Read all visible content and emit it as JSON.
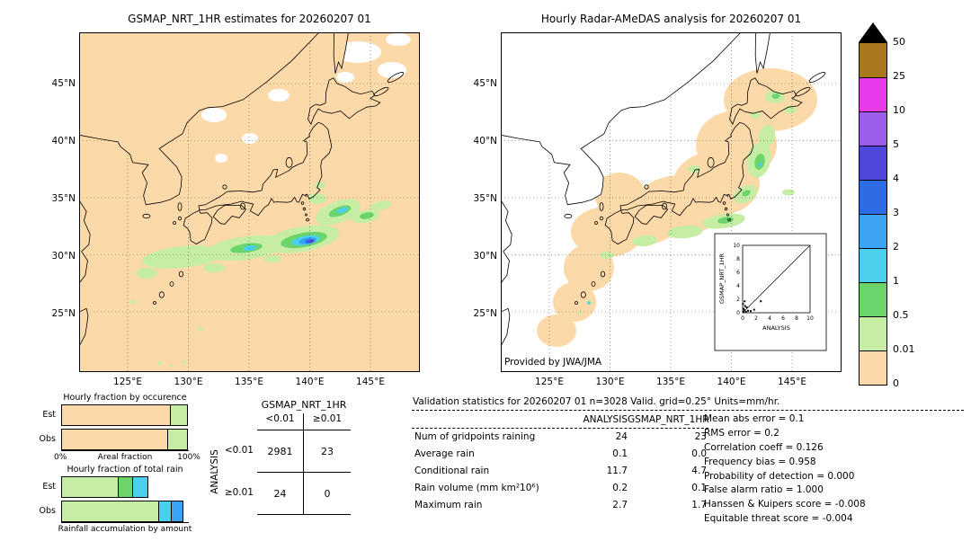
{
  "palette": {
    "p0": "#fcd9a9",
    "p001": "#c5eda3",
    "p05": "#6bd46b",
    "p1": "#4ad0ec",
    "p2": "#3ba4f2",
    "p3": "#2d6ce4",
    "p4": "#4f46dc",
    "p5": "#9c5ee8",
    "p10": "#e93ae9",
    "p25": "#a8791d",
    "overflow": "#000000",
    "nodata": "#ffffff"
  },
  "left_map": {
    "title": "GSMAP_NRT_1HR estimates for 20260207 01",
    "lat_ticks": [
      "45°N",
      "40°N",
      "35°N",
      "30°N",
      "25°N"
    ],
    "lon_ticks": [
      "125°E",
      "130°E",
      "135°E",
      "140°E",
      "145°E"
    ]
  },
  "right_map": {
    "title": "Hourly Radar-AMeDAS analysis for 20260207 01",
    "credit": "Provided by JWA/JMA",
    "lat_ticks": [
      "45°N",
      "40°N",
      "35°N",
      "30°N",
      "25°N"
    ],
    "lon_ticks": [
      "125°E",
      "130°E",
      "135°E",
      "140°E",
      "145°E"
    ],
    "inset": {
      "xlabel": "ANALYSIS",
      "ylabel": "GSMAP_NRT_1HR",
      "ticks": [
        "0",
        "2",
        "4",
        "6",
        "8",
        "10"
      ],
      "points": [
        [
          0.1,
          0.1
        ],
        [
          0.25,
          0.35
        ],
        [
          0.5,
          0.15
        ],
        [
          0.15,
          0.6
        ],
        [
          0.8,
          0.3
        ],
        [
          0.35,
          1.0
        ],
        [
          0.3,
          1.7
        ],
        [
          1.2,
          0.25
        ],
        [
          1.7,
          0.45
        ],
        [
          2.7,
          1.7
        ],
        [
          0.6,
          0.8
        ],
        [
          0.05,
          1.3
        ]
      ]
    }
  },
  "colorbar": {
    "units": "mm/hr",
    "labels": [
      "50",
      "25",
      "10",
      "5",
      "4",
      "3",
      "2",
      "1",
      "0.5",
      "0.01",
      "0"
    ],
    "colors": [
      "#a8791d",
      "#e93ae9",
      "#9c5ee8",
      "#4f46dc",
      "#2d6ce4",
      "#3ba4f2",
      "#4ad0ec",
      "#6bd46b",
      "#c5eda3",
      "#fcd9a9"
    ],
    "overflow_color": "#000000"
  },
  "occurrence_chart": {
    "title": "Hourly fraction by occurence",
    "xlabel": "Areal fraction",
    "x_min": "0%",
    "x_max": "100%",
    "rows": [
      {
        "label": "Est",
        "segments": [
          {
            "color": "p0",
            "pct": 86
          },
          {
            "color": "p001",
            "pct": 14
          }
        ]
      },
      {
        "label": "Obs",
        "segments": [
          {
            "color": "p0",
            "pct": 84
          },
          {
            "color": "p001",
            "pct": 16
          }
        ]
      }
    ]
  },
  "volume_chart": {
    "title": "Hourly fraction of total rain",
    "xlabel": "Rainfall accumulation by amount",
    "rows": [
      {
        "label": "Est",
        "segments": [
          {
            "color": "p001",
            "pct": 45
          },
          {
            "color": "p05",
            "pct": 12
          },
          {
            "color": "p1",
            "pct": 13
          }
        ]
      },
      {
        "label": "Obs",
        "segments": [
          {
            "color": "p001",
            "pct": 77
          },
          {
            "color": "p1",
            "pct": 10
          },
          {
            "color": "p2",
            "pct": 10
          }
        ]
      }
    ]
  },
  "contingency": {
    "title": "GSMAP_NRT_1HR",
    "row_axis_label": "ANALYSIS",
    "col_labels": [
      "<0.01",
      "≥0.01"
    ],
    "row_labels": [
      "<0.01",
      "≥0.01"
    ],
    "values": [
      [
        "2981",
        "23"
      ],
      [
        "24",
        "0"
      ]
    ]
  },
  "stats": {
    "header": "Validation statistics for 20260207 01  n=3028 Valid. grid=0.25° Units=mm/hr.",
    "col_analysis": "ANALYSIS",
    "col_gsmap": "GSMAP_NRT_1HR",
    "rows": [
      {
        "label": "Num of gridpoints raining",
        "analysis": "24",
        "gsmap": "23"
      },
      {
        "label": "Average rain",
        "analysis": "0.1",
        "gsmap": "0.0"
      },
      {
        "label": "Conditional rain",
        "analysis": "11.7",
        "gsmap": "4.7"
      },
      {
        "label": "Rain volume (mm km²10⁶)",
        "analysis": "0.2",
        "gsmap": "0.1"
      },
      {
        "label": "Maximum rain",
        "analysis": "2.7",
        "gsmap": "1.7"
      }
    ],
    "scores": [
      {
        "label": "Mean abs error",
        "value": "0.1"
      },
      {
        "label": "RMS error",
        "value": "0.2"
      },
      {
        "label": "Correlation coeff",
        "value": "0.126"
      },
      {
        "label": "Frequency bias",
        "value": "0.958"
      },
      {
        "label": "Probability of detection",
        "value": "0.000"
      },
      {
        "label": "False alarm ratio",
        "value": "1.000"
      },
      {
        "label": "Hanssen & Kuipers score",
        "value": "-0.008"
      },
      {
        "label": "Equitable threat score",
        "value": "-0.004"
      }
    ]
  },
  "chart_data": [
    {
      "type": "heatmap",
      "title": "GSMAP_NRT_1HR estimates for 20260207 01",
      "units": "mm/hr",
      "lon_range": [
        121,
        149
      ],
      "lat_range": [
        20,
        49.5
      ],
      "levels": [
        0,
        0.01,
        0.5,
        1,
        2,
        3,
        4,
        5,
        10,
        25,
        50
      ],
      "level_colors": [
        "#fcd9a9",
        "#c5eda3",
        "#6bd46b",
        "#4ad0ec",
        "#3ba4f2",
        "#2d6ce4",
        "#4f46dc",
        "#9c5ee8",
        "#e93ae9",
        "#a8791d"
      ],
      "description": "Satellite hourly rain estimate over Japan; light-rain band (0.01-0.5 mm/hr) south of Honshu near 29-32N with embedded cores up to the 3-5 mm/hr classes near 139-140E 30-31N; white patches are no-data."
    },
    {
      "type": "heatmap",
      "title": "Hourly Radar-AMeDAS analysis for 20260207 01",
      "units": "mm/hr",
      "lon_range": [
        121,
        149
      ],
      "lat_range": [
        20,
        49.5
      ],
      "levels": [
        0,
        0.01,
        0.5,
        1,
        2,
        3,
        4,
        5,
        10,
        25,
        50
      ],
      "description": "Radar-AMeDAS analyzed rain inside radar coverage (peach region hugging the archipelago); scattered 0.01-0.5 mm/hr rain along the Pacific side of Tohoku, east of Kanto, south of western Japan and eastern Hokkaido; small cells up to 1-2 mm/hr.",
      "credit": "Provided by JWA/JMA"
    },
    {
      "type": "bar",
      "title": "Hourly fraction by occurence",
      "orientation": "horizontal",
      "stacked": true,
      "categories": [
        "Est",
        "Obs"
      ],
      "xlabel": "Areal fraction",
      "xlim": [
        0,
        100
      ],
      "x_tick_labels": [
        "0%",
        "100%"
      ],
      "series": [
        {
          "name": "no rain (0-0.01 mm/hr)",
          "color": "#fcd9a9",
          "values": [
            86,
            84
          ]
        },
        {
          "name": "0.01-0.5 mm/hr",
          "color": "#c5eda3",
          "values": [
            14,
            16
          ]
        }
      ],
      "note": "segment widths estimated from pixels"
    },
    {
      "type": "bar",
      "title": "Hourly fraction of total rain",
      "orientation": "horizontal",
      "stacked": true,
      "categories": [
        "Est",
        "Obs"
      ],
      "xlabel": "Rainfall accumulation by amount",
      "xlim": [
        0,
        100
      ],
      "series": [
        {
          "name": "0.01-0.5 mm/hr",
          "color": "#c5eda3",
          "values": [
            45,
            77
          ]
        },
        {
          "name": "0.5-1 mm/hr",
          "color": "#6bd46b",
          "values": [
            12,
            0
          ]
        },
        {
          "name": "1-2 mm/hr",
          "color": "#4ad0ec",
          "values": [
            13,
            10
          ]
        },
        {
          "name": "2-3 mm/hr",
          "color": "#3ba4f2",
          "values": [
            0,
            10
          ]
        }
      ],
      "note": "segment widths estimated from pixels"
    },
    {
      "type": "table",
      "title": "Contingency table (gridpoints) GSMAP_NRT_1HR vs ANALYSIS",
      "columns": [
        "",
        "GSMAP <0.01",
        "GSMAP ≥0.01"
      ],
      "rows": [
        [
          "ANALYSIS <0.01",
          2981,
          23
        ],
        [
          "ANALYSIS ≥0.01",
          24,
          0
        ]
      ]
    },
    {
      "type": "scatter",
      "title": "GSMAP_NRT_1HR vs ANALYSIS",
      "xlabel": "ANALYSIS",
      "ylabel": "GSMAP_NRT_1HR",
      "xlim": [
        0,
        10
      ],
      "ylim": [
        0,
        10
      ],
      "x_ticks": [
        0,
        2,
        4,
        6,
        8,
        10
      ],
      "y_ticks": [
        0,
        2,
        4,
        6,
        8,
        10
      ],
      "diagonal_line": true,
      "points": [
        [
          0.1,
          0.1
        ],
        [
          0.25,
          0.35
        ],
        [
          0.5,
          0.15
        ],
        [
          0.15,
          0.6
        ],
        [
          0.8,
          0.3
        ],
        [
          0.35,
          1.0
        ],
        [
          0.3,
          1.7
        ],
        [
          1.2,
          0.25
        ],
        [
          1.7,
          0.45
        ],
        [
          2.7,
          1.7
        ],
        [
          0.6,
          0.8
        ],
        [
          0.05,
          1.3
        ]
      ]
    },
    {
      "type": "table",
      "title": "Validation statistics for 20260207 01  n=3028 Valid. grid=0.25° Units=mm/hr.",
      "columns": [
        "",
        "ANALYSIS",
        "GSMAP_NRT_1HR"
      ],
      "rows": [
        [
          "Num of gridpoints raining",
          24,
          23
        ],
        [
          "Average rain",
          0.1,
          0.0
        ],
        [
          "Conditional rain",
          11.7,
          4.7
        ],
        [
          "Rain volume (mm km²10⁶)",
          0.2,
          0.1
        ],
        [
          "Maximum rain",
          2.7,
          1.7
        ]
      ]
    },
    {
      "type": "table",
      "title": "Validation scores",
      "rows": [
        [
          "Mean abs error",
          0.1
        ],
        [
          "RMS error",
          0.2
        ],
        [
          "Correlation coeff",
          0.126
        ],
        [
          "Frequency bias",
          0.958
        ],
        [
          "Probability of detection",
          0.0
        ],
        [
          "False alarm ratio",
          1.0
        ],
        [
          "Hanssen & Kuipers score",
          -0.008
        ],
        [
          "Equitable threat score",
          -0.004
        ]
      ]
    }
  ]
}
